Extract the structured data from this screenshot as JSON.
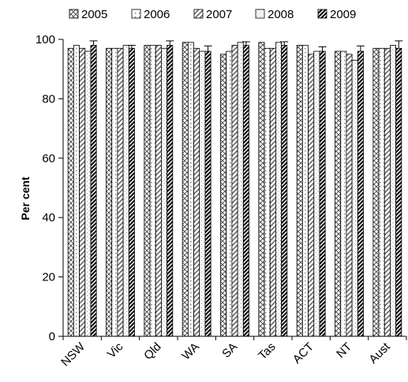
{
  "chart_data": {
    "type": "bar",
    "title": "",
    "xlabel": "",
    "ylabel": "Per cent",
    "ylim": [
      0,
      100
    ],
    "yticks": [
      0,
      20,
      40,
      60,
      80,
      100
    ],
    "grid": false,
    "legend_position": "top",
    "categories": [
      "NSW",
      "Vic",
      "Qld",
      "WA",
      "SA",
      "Tas",
      "ACT",
      "NT",
      "Aust"
    ],
    "series": [
      {
        "name": "2005",
        "pattern": "cross-hatch",
        "values": [
          97,
          97,
          98,
          99,
          95,
          99,
          98,
          96,
          97
        ],
        "error": [
          null,
          null,
          null,
          null,
          null,
          null,
          null,
          null,
          null
        ]
      },
      {
        "name": "2006",
        "pattern": "light-dots",
        "values": [
          98,
          97,
          98,
          99,
          96,
          97,
          98,
          96,
          97
        ],
        "error": [
          null,
          null,
          null,
          null,
          null,
          null,
          null,
          null,
          null
        ]
      },
      {
        "name": "2007",
        "pattern": "diagonal",
        "values": [
          97,
          97,
          98,
          97,
          98,
          97,
          95,
          95,
          97
        ],
        "error": [
          null,
          null,
          null,
          null,
          null,
          null,
          null,
          null,
          null
        ]
      },
      {
        "name": "2008",
        "pattern": "dotted-grid",
        "values": [
          96,
          98,
          97,
          96,
          99,
          99,
          96,
          93,
          98
        ],
        "error": [
          null,
          null,
          null,
          null,
          null,
          null,
          null,
          null,
          null
        ]
      },
      {
        "name": "2009",
        "pattern": "dark-diagonal",
        "values": [
          98,
          97,
          98,
          96,
          98,
          98,
          96,
          96,
          97
        ],
        "error": [
          1.5,
          1.0,
          1.5,
          1.8,
          1.2,
          1.2,
          1.5,
          1.8,
          2.5
        ]
      }
    ]
  }
}
